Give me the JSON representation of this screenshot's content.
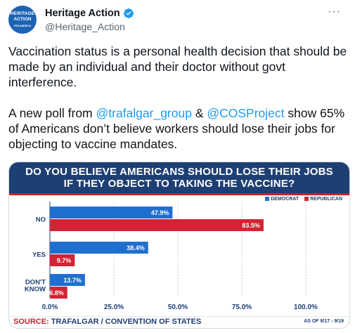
{
  "account": {
    "display_name": "Heritage Action",
    "handle": "@Heritage_Action",
    "avatar_lines": [
      "HERITAGE",
      "ACTION",
      "FOR AMERICA"
    ]
  },
  "menu": {
    "more_label": "···"
  },
  "tweet": {
    "paragraph1": "Vaccination status is a personal health decision that should be made by an individual and their doctor without govt interference.",
    "p2_prefix": "A new poll from ",
    "p2_link1": "@trafalgar_group",
    "p2_mid": " & ",
    "p2_link2": "@COSProject",
    "p2_suffix": " show 65% of Americans don’t believe workers should lose their jobs for objecting to vaccine mandates."
  },
  "chart_header": {
    "title_line1": "DO YOU BELIEVE AMERICANS SHOULD LOSE THEIR JOBS",
    "title_line2": "IF THEY OBJECT TO TAKING THE VACCINE?",
    "source_label": "SOURCE:",
    "source_text": "TRAFALGAR / CONVENTION OF STATES",
    "as_of": "AS OF 9/17 - 9/19"
  },
  "chart_data": {
    "type": "bar",
    "orientation": "horizontal",
    "categories": [
      "NO",
      "YES",
      "DON'T KNOW"
    ],
    "series": [
      {
        "name": "DEMOCRAT",
        "color": "#1f6fd1",
        "values": [
          47.9,
          38.4,
          13.7
        ]
      },
      {
        "name": "REPUBLICAN",
        "color": "#d42333",
        "values": [
          83.5,
          9.7,
          6.8
        ]
      }
    ],
    "xlim": [
      0,
      100
    ],
    "x_ticks": [
      "0.0%",
      "25.0%",
      "50.0%",
      "75.0%",
      "100.0%"
    ],
    "data_labels": [
      [
        "47.9%",
        "38.4%",
        "13.7%"
      ],
      [
        "83.5%",
        "9.7%",
        "6.8%"
      ]
    ],
    "legend_position": "top-right",
    "grid": true
  }
}
